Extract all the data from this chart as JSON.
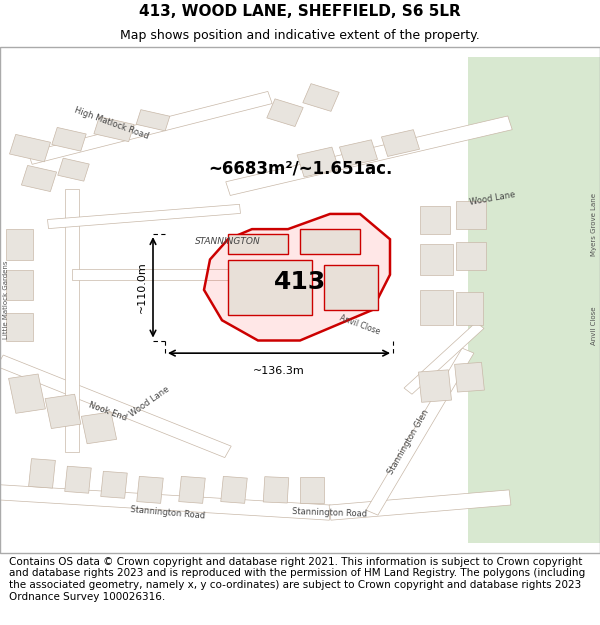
{
  "title_line1": "413, WOOD LANE, SHEFFIELD, S6 5LR",
  "title_line2": "Map shows position and indicative extent of the property.",
  "area_text": "~6683m²/~1.651ac.",
  "label_413": "413",
  "dim_width": "~136.3m",
  "dim_height": "~110.0m",
  "label_stannington": "STANNINGTON",
  "footer_text": "Contains OS data © Crown copyright and database right 2021. This information is subject to Crown copyright and database rights 2023 and is reproduced with the permission of HM Land Registry. The polygons (including the associated geometry, namely x, y co-ordinates) are subject to Crown copyright and database rights 2023 Ordnance Survey 100026316.",
  "bg_map_color": "#f0ede8",
  "building_fill": "#e8e4de",
  "building_edge": "#c8b8a8",
  "road_color": "#ffffff",
  "road_edge_color": "#d0c0b0",
  "highlight_fill": "#ff000018",
  "highlight_edge": "#cc0000",
  "green_area": "#d8e8d0",
  "title_fontsize": 11,
  "subtitle_fontsize": 9,
  "footer_fontsize": 7.5
}
